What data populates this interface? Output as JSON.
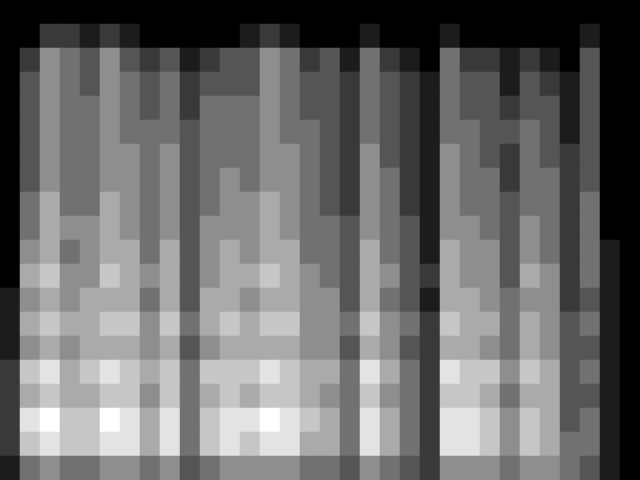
{
  "chart_data": {
    "type": "heatmap",
    "tick_labels": false,
    "zlim": [
      0,
      9
    ],
    "cells": [
      [
        0,
        0,
        0,
        0,
        0,
        0,
        0,
        0,
        0,
        0,
        0,
        0,
        0,
        0,
        0,
        0,
        0,
        0,
        0,
        0,
        0,
        0,
        0,
        0,
        0,
        0,
        0,
        0,
        0,
        0,
        0,
        0
      ],
      [
        0,
        0,
        2,
        2,
        1,
        2,
        1,
        0,
        0,
        0,
        0,
        0,
        1,
        2,
        1,
        0,
        0,
        0,
        1,
        0,
        0,
        0,
        1,
        0,
        0,
        0,
        0,
        0,
        0,
        1,
        0,
        0
      ],
      [
        0,
        2,
        5,
        4,
        3,
        5,
        3,
        2,
        3,
        1,
        2,
        3,
        3,
        5,
        4,
        2,
        3,
        1,
        4,
        2,
        1,
        0,
        4,
        2,
        2,
        1,
        2,
        1,
        0,
        3,
        0,
        0
      ],
      [
        0,
        3,
        5,
        4,
        3,
        5,
        4,
        3,
        4,
        2,
        3,
        3,
        3,
        5,
        4,
        3,
        3,
        2,
        4,
        3,
        2,
        1,
        4,
        3,
        3,
        1,
        3,
        2,
        1,
        3,
        0,
        0
      ],
      [
        0,
        3,
        5,
        4,
        4,
        5,
        4,
        3,
        4,
        2,
        4,
        4,
        4,
        5,
        4,
        3,
        3,
        2,
        4,
        3,
        2,
        1,
        4,
        3,
        3,
        2,
        3,
        3,
        1,
        3,
        0,
        0
      ],
      [
        0,
        3,
        5,
        4,
        4,
        5,
        4,
        4,
        4,
        3,
        4,
        4,
        4,
        5,
        4,
        4,
        3,
        2,
        4,
        3,
        2,
        1,
        4,
        4,
        3,
        3,
        4,
        3,
        1,
        3,
        0,
        0
      ],
      [
        0,
        3,
        5,
        4,
        4,
        5,
        5,
        4,
        5,
        3,
        4,
        4,
        4,
        5,
        5,
        4,
        3,
        2,
        5,
        3,
        2,
        1,
        5,
        4,
        3,
        2,
        4,
        3,
        2,
        3,
        0,
        0
      ],
      [
        0,
        3,
        5,
        4,
        4,
        5,
        5,
        4,
        5,
        3,
        4,
        5,
        4,
        5,
        5,
        4,
        3,
        2,
        5,
        4,
        2,
        1,
        5,
        4,
        4,
        2,
        4,
        4,
        2,
        3,
        0,
        0
      ],
      [
        0,
        4,
        6,
        4,
        4,
        6,
        5,
        4,
        5,
        3,
        4,
        5,
        5,
        6,
        5,
        4,
        3,
        2,
        5,
        4,
        2,
        1,
        5,
        4,
        4,
        3,
        4,
        4,
        2,
        4,
        0,
        0
      ],
      [
        0,
        4,
        6,
        5,
        5,
        6,
        5,
        4,
        5,
        3,
        5,
        5,
        5,
        6,
        5,
        4,
        4,
        3,
        5,
        4,
        3,
        1,
        5,
        5,
        4,
        3,
        5,
        4,
        2,
        4,
        0,
        0
      ],
      [
        0,
        5,
        6,
        4,
        5,
        6,
        6,
        4,
        6,
        3,
        5,
        6,
        5,
        6,
        6,
        4,
        4,
        3,
        6,
        4,
        3,
        1,
        6,
        5,
        5,
        3,
        5,
        4,
        2,
        4,
        1,
        0
      ],
      [
        0,
        6,
        7,
        5,
        5,
        7,
        6,
        5,
        6,
        3,
        5,
        6,
        6,
        7,
        6,
        5,
        4,
        3,
        6,
        5,
        3,
        2,
        6,
        5,
        5,
        3,
        6,
        5,
        2,
        4,
        1,
        0
      ],
      [
        1,
        5,
        6,
        5,
        6,
        6,
        6,
        4,
        6,
        3,
        6,
        6,
        5,
        6,
        6,
        5,
        5,
        3,
        6,
        4,
        3,
        1,
        6,
        6,
        5,
        4,
        5,
        5,
        2,
        3,
        1,
        0
      ],
      [
        1,
        6,
        7,
        6,
        6,
        7,
        7,
        5,
        7,
        4,
        6,
        7,
        6,
        7,
        7,
        5,
        5,
        4,
        7,
        5,
        4,
        2,
        7,
        6,
        6,
        4,
        6,
        5,
        3,
        4,
        1,
        0
      ],
      [
        1,
        5,
        6,
        5,
        6,
        6,
        6,
        5,
        6,
        3,
        5,
        6,
        6,
        6,
        6,
        5,
        5,
        3,
        6,
        5,
        3,
        2,
        6,
        6,
        5,
        4,
        6,
        5,
        3,
        3,
        1,
        0
      ],
      [
        2,
        7,
        8,
        6,
        7,
        8,
        7,
        6,
        7,
        4,
        7,
        7,
        7,
        8,
        7,
        6,
        6,
        4,
        8,
        6,
        4,
        2,
        8,
        7,
        7,
        5,
        7,
        6,
        3,
        4,
        1,
        0
      ],
      [
        2,
        6,
        7,
        6,
        6,
        7,
        7,
        5,
        7,
        4,
        6,
        7,
        6,
        7,
        7,
        6,
        5,
        4,
        7,
        5,
        4,
        2,
        7,
        7,
        6,
        4,
        6,
        6,
        3,
        3,
        1,
        0
      ],
      [
        2,
        8,
        9,
        7,
        7,
        9,
        8,
        6,
        8,
        4,
        7,
        8,
        8,
        9,
        8,
        7,
        6,
        4,
        8,
        6,
        4,
        2,
        8,
        8,
        7,
        5,
        7,
        6,
        3,
        4,
        1,
        0
      ],
      [
        2,
        7,
        8,
        7,
        7,
        8,
        8,
        6,
        8,
        4,
        7,
        8,
        7,
        8,
        8,
        6,
        6,
        4,
        8,
        6,
        4,
        2,
        8,
        8,
        7,
        5,
        7,
        6,
        4,
        4,
        1,
        0
      ],
      [
        1,
        4,
        5,
        4,
        4,
        5,
        5,
        4,
        5,
        3,
        4,
        5,
        5,
        5,
        5,
        4,
        4,
        3,
        5,
        4,
        3,
        2,
        5,
        5,
        5,
        4,
        5,
        5,
        4,
        3,
        1,
        0
      ]
    ]
  }
}
